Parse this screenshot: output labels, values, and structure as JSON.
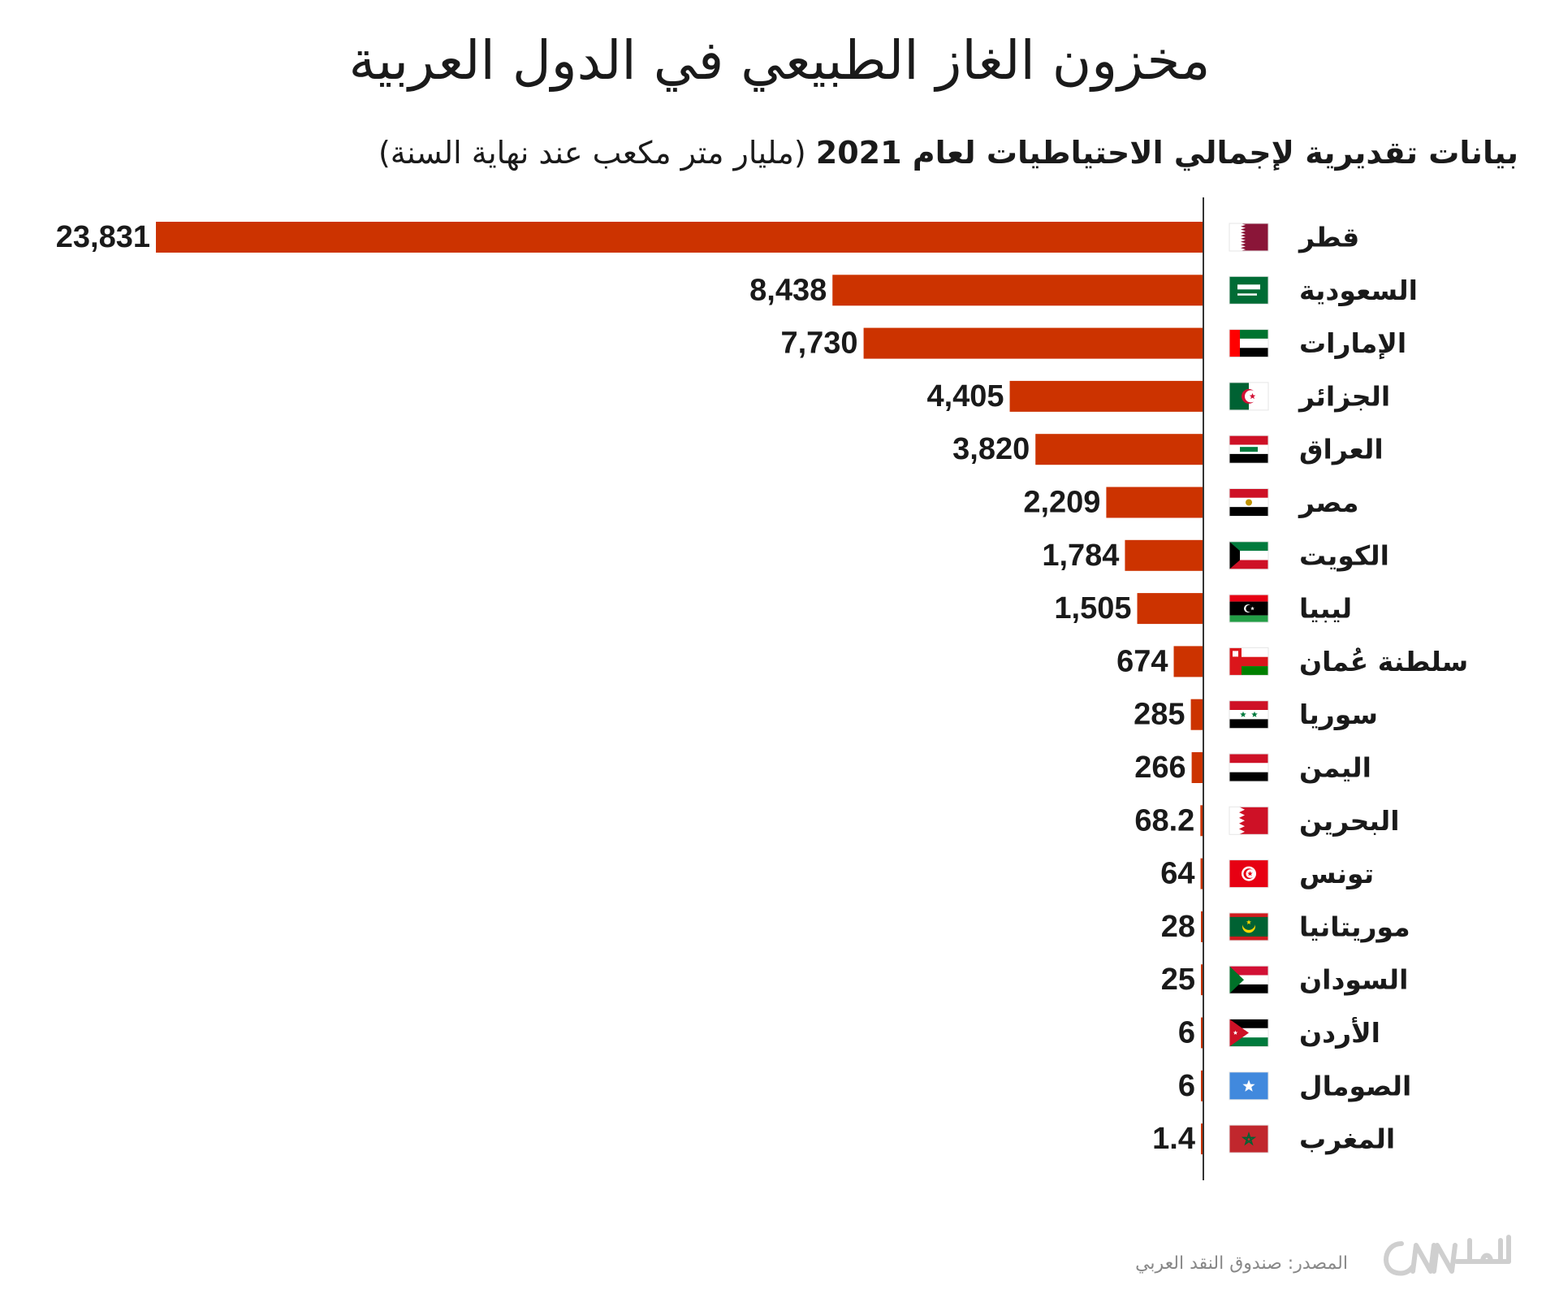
{
  "title": "مخزون الغاز الطبيعي في الدول العربية",
  "subtitle_bold": "بيانات تقديرية لإجمالي الاحتياطيات لعام 2021",
  "subtitle_rest": "(مليار متر مكعب عند نهاية السنة)",
  "source": "المصدر: صندوق النقد العربي",
  "logo_text": "CNN بالعربية",
  "colors": {
    "bar": "#cc3300",
    "text": "#1a1a1a",
    "axis": "#333333",
    "source": "#888888",
    "logo": "#cfcfcf"
  },
  "chart_data": {
    "type": "bar",
    "orientation": "horizontal",
    "title": "مخزون الغاز الطبيعي في الدول العربية",
    "subtitle": "بيانات تقديرية لإجمالي الاحتياطيات لعام 2021 (مليار متر مكعب عند نهاية السنة)",
    "categories": [
      "قطر",
      "السعودية",
      "الإمارات",
      "الجزائر",
      "العراق",
      "مصر",
      "الكويت",
      "ليبيا",
      "سلطنة عُمان",
      "سوريا",
      "اليمن",
      "البحرين",
      "تونس",
      "موريتانيا",
      "السودان",
      "الأردن",
      "الصومال",
      "المغرب"
    ],
    "flags": [
      "qatar-flag-icon",
      "saudi-flag-icon",
      "uae-flag-icon",
      "algeria-flag-icon",
      "iraq-flag-icon",
      "egypt-flag-icon",
      "kuwait-flag-icon",
      "libya-flag-icon",
      "oman-flag-icon",
      "syria-flag-icon",
      "yemen-flag-icon",
      "bahrain-flag-icon",
      "tunisia-flag-icon",
      "mauritania-flag-icon",
      "sudan-flag-icon",
      "jordan-flag-icon",
      "somalia-flag-icon",
      "morocco-flag-icon"
    ],
    "values": [
      23831,
      8438,
      7730,
      4405,
      3820,
      2209,
      1784,
      1505,
      674,
      285,
      266,
      68.2,
      64,
      28,
      25,
      6,
      6,
      1.4
    ],
    "labels": [
      "23,831",
      "8,438",
      "7,730",
      "4,405",
      "3,820",
      "2,209",
      "1,784",
      "1,505",
      "674",
      "285",
      "266",
      "68.2",
      "64",
      "28",
      "25",
      "6",
      "6",
      "1.4"
    ],
    "xlim": [
      0,
      23831
    ],
    "grid": false,
    "legend": "none"
  }
}
